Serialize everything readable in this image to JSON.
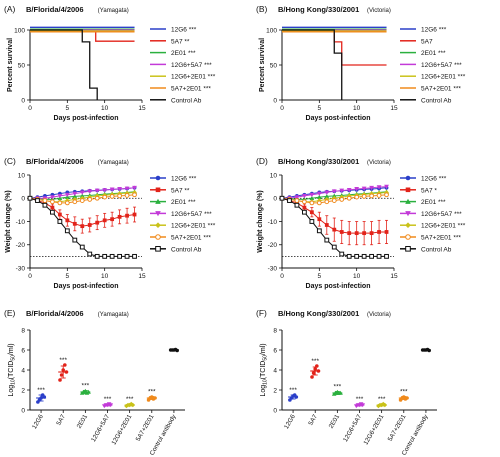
{
  "chart_data": [
    {
      "panel": "(A)",
      "title_main": "B/Florida/4/2006",
      "title_lineage": "(Yamagata)",
      "type": "line",
      "xlabel": "Days post-infection",
      "ylabel": "Percent survival",
      "xlim": [
        0,
        15
      ],
      "ylim": [
        0,
        100
      ],
      "xticks": [
        "0",
        "5",
        "10",
        "15"
      ],
      "yticks": [
        "0",
        "50",
        "100"
      ],
      "legend": "right",
      "series": [
        {
          "name": "12G6",
          "sig": "***",
          "color": "#2b3fc9",
          "x": [
            0,
            14
          ],
          "y": [
            100,
            100
          ]
        },
        {
          "name": "5A7",
          "sig": "**",
          "color": "#e2231a",
          "x": [
            0,
            8.8,
            8.8,
            14
          ],
          "y": [
            100,
            100,
            84,
            84
          ]
        },
        {
          "name": "2E01",
          "sig": "***",
          "color": "#2bb03f",
          "x": [
            0,
            14
          ],
          "y": [
            100,
            100
          ]
        },
        {
          "name": "12G6+5A7",
          "sig": "***",
          "color": "#c33ad8",
          "x": [
            0,
            14
          ],
          "y": [
            100,
            100
          ]
        },
        {
          "name": "12G6+2E01",
          "sig": "***",
          "color": "#c9c21a",
          "x": [
            0,
            14
          ],
          "y": [
            100,
            100
          ]
        },
        {
          "name": "5A7+2E01",
          "sig": "***",
          "color": "#f08a1c",
          "x": [
            0,
            14
          ],
          "y": [
            100,
            100
          ]
        },
        {
          "name": "Control Ab",
          "sig": "",
          "color": "#111111",
          "x": [
            0,
            7,
            7,
            8,
            8,
            9,
            9
          ],
          "y": [
            100,
            100,
            83,
            83,
            17,
            17,
            0
          ]
        }
      ]
    },
    {
      "panel": "(B)",
      "title_main": "B/Hong Kong/330/2001",
      "title_lineage": "(Victoria)",
      "type": "line",
      "xlabel": "Days post-infection",
      "ylabel": "Percent survival",
      "xlim": [
        0,
        15
      ],
      "ylim": [
        0,
        100
      ],
      "xticks": [
        "0",
        "5",
        "10",
        "15"
      ],
      "yticks": [
        "0",
        "50",
        "100"
      ],
      "legend": "right",
      "series": [
        {
          "name": "12G6",
          "sig": "***",
          "color": "#2b3fc9",
          "x": [
            0,
            14
          ],
          "y": [
            100,
            100
          ]
        },
        {
          "name": "5A7",
          "sig": "",
          "color": "#e2231a",
          "x": [
            0,
            7,
            7,
            8,
            8,
            14
          ],
          "y": [
            100,
            100,
            83,
            83,
            50,
            50
          ]
        },
        {
          "name": "2E01",
          "sig": "***",
          "color": "#2bb03f",
          "x": [
            0,
            14
          ],
          "y": [
            100,
            100
          ]
        },
        {
          "name": "12G6+5A7",
          "sig": "***",
          "color": "#c33ad8",
          "x": [
            0,
            14
          ],
          "y": [
            100,
            100
          ]
        },
        {
          "name": "12G6+2E01",
          "sig": "***",
          "color": "#c9c21a",
          "x": [
            0,
            14
          ],
          "y": [
            100,
            100
          ]
        },
        {
          "name": "5A7+2E01",
          "sig": "***",
          "color": "#f08a1c",
          "x": [
            0,
            14
          ],
          "y": [
            100,
            100
          ]
        },
        {
          "name": "Control Ab",
          "sig": "",
          "color": "#111111",
          "x": [
            0,
            7,
            7,
            8,
            8
          ],
          "y": [
            100,
            100,
            67,
            67,
            0
          ]
        }
      ]
    },
    {
      "panel": "(C)",
      "title_main": "B/Florida/4/2006",
      "title_lineage": "(Yamagata)",
      "type": "line",
      "xlabel": "Days post-infection",
      "ylabel": "Weight change (%)",
      "xlim": [
        0,
        15
      ],
      "ylim": [
        -30,
        10
      ],
      "xticks": [
        "0",
        "5",
        "10",
        "15"
      ],
      "yticks": [
        "-30",
        "-20",
        "-10",
        "0",
        "10"
      ],
      "reference_lines": [
        0,
        -25
      ],
      "legend": "right",
      "x": [
        0,
        1,
        2,
        3,
        4,
        5,
        6,
        7,
        8,
        9,
        10,
        11,
        12,
        13,
        14
      ],
      "series": [
        {
          "name": "12G6",
          "sig": "***",
          "color": "#2b3fc9",
          "marker": "circle",
          "y": [
            0,
            0.5,
            1,
            1.5,
            2,
            2.5,
            2.8,
            3,
            3.2,
            3.4,
            3.6,
            3.8,
            4,
            4.2,
            4.5
          ]
        },
        {
          "name": "5A7",
          "sig": "**",
          "color": "#e2231a",
          "marker": "square",
          "y": [
            0,
            -1,
            -2,
            -4,
            -7,
            -9.5,
            -11,
            -12,
            -11.5,
            -10.5,
            -9.5,
            -9,
            -8,
            -7.5,
            -7
          ],
          "err": [
            0,
            0.5,
            1,
            1.5,
            2,
            2.5,
            3,
            3,
            3,
            3,
            3,
            3,
            3,
            3.2,
            3.2
          ]
        },
        {
          "name": "2E01",
          "sig": "***",
          "color": "#2bb03f",
          "marker": "triangle-up",
          "y": [
            0,
            0,
            -0.5,
            -0.5,
            0,
            0.5,
            0.8,
            1,
            1.2,
            1.5,
            1.8,
            2,
            2.2,
            2.5,
            2.8
          ]
        },
        {
          "name": "12G6+5A7",
          "sig": "***",
          "color": "#c33ad8",
          "marker": "triangle-down",
          "y": [
            0,
            0,
            0,
            0.5,
            1,
            1.5,
            2,
            2.5,
            3,
            3.3,
            3.5,
            3.8,
            4,
            4.2,
            4.5
          ]
        },
        {
          "name": "12G6+2E01",
          "sig": "***",
          "color": "#c9c21a",
          "marker": "diamond",
          "y": [
            0,
            -0.5,
            -1,
            -1.5,
            -1.5,
            -1,
            -0.5,
            0,
            0.5,
            1,
            1.3,
            1.6,
            2,
            2.2,
            2.5
          ]
        },
        {
          "name": "5A7+2E01",
          "sig": "***",
          "color": "#f08a1c",
          "marker": "circle-open",
          "y": [
            0,
            -0.5,
            -1,
            -1.5,
            -2,
            -2,
            -1.5,
            -1,
            -0.5,
            0,
            0.5,
            0.8,
            1,
            1.2,
            1.5
          ]
        },
        {
          "name": "Control Ab",
          "sig": "",
          "color": "#111111",
          "marker": "square-open",
          "y": [
            0,
            -1,
            -3,
            -6,
            -10,
            -14,
            -18,
            -21,
            -24,
            -25,
            -25,
            -25,
            -25,
            -25,
            -25
          ]
        }
      ]
    },
    {
      "panel": "(D)",
      "title_main": "B/Hong Kong/330/2001",
      "title_lineage": "(Victoria)",
      "type": "line",
      "xlabel": "Days post-infection",
      "ylabel": "Weight change (%)",
      "xlim": [
        0,
        15
      ],
      "ylim": [
        -30,
        10
      ],
      "xticks": [
        "0",
        "5",
        "10",
        "15"
      ],
      "yticks": [
        "-30",
        "-20",
        "-10",
        "0",
        "10"
      ],
      "reference_lines": [
        0,
        -25
      ],
      "legend": "right",
      "x": [
        0,
        1,
        2,
        3,
        4,
        5,
        6,
        7,
        8,
        9,
        10,
        11,
        12,
        13,
        14
      ],
      "series": [
        {
          "name": "12G6",
          "sig": "***",
          "color": "#2b3fc9",
          "marker": "circle",
          "y": [
            0,
            0.5,
            1,
            1.5,
            2,
            2.5,
            2.8,
            3,
            3.2,
            3.4,
            3.6,
            3.8,
            4,
            4.2,
            4.5
          ]
        },
        {
          "name": "5A7",
          "sig": "*",
          "color": "#e2231a",
          "marker": "square",
          "y": [
            0,
            -1,
            -2,
            -4,
            -6,
            -9,
            -11.5,
            -13.5,
            -14.5,
            -15,
            -15,
            -15,
            -15,
            -14.5,
            -14.5
          ],
          "err": [
            0,
            0.5,
            1,
            1.5,
            2,
            3,
            4,
            5,
            5,
            5,
            5,
            5,
            5,
            5,
            5
          ]
        },
        {
          "name": "2E01",
          "sig": "***",
          "color": "#2bb03f",
          "marker": "triangle-up",
          "y": [
            0,
            0,
            -0.5,
            -0.5,
            0,
            0.5,
            0.8,
            1,
            1.2,
            1.5,
            1.8,
            2,
            2.2,
            2.5,
            2.8
          ]
        },
        {
          "name": "12G6+5A7",
          "sig": "***",
          "color": "#c33ad8",
          "marker": "triangle-down",
          "y": [
            0,
            0,
            0.5,
            1,
            1.5,
            2,
            2.5,
            3,
            3.3,
            3.6,
            4,
            4.2,
            4.5,
            4.8,
            5
          ]
        },
        {
          "name": "12G6+2E01",
          "sig": "***",
          "color": "#c9c21a",
          "marker": "diamond",
          "y": [
            0,
            -0.5,
            -1,
            -1.5,
            -1.5,
            -1,
            -0.5,
            0,
            0.5,
            1,
            1.3,
            1.6,
            2,
            2.2,
            2.5
          ]
        },
        {
          "name": "5A7+2E01",
          "sig": "***",
          "color": "#f08a1c",
          "marker": "circle-open",
          "y": [
            0,
            -0.5,
            -1,
            -1.5,
            -2,
            -2,
            -1.5,
            -1,
            -0.5,
            0,
            0.5,
            0.8,
            1,
            1.2,
            1.5
          ]
        },
        {
          "name": "Control Ab",
          "sig": "",
          "color": "#111111",
          "marker": "square-open",
          "y": [
            0,
            -1,
            -3,
            -6,
            -10,
            -14,
            -18,
            -21,
            -24,
            -25,
            -25,
            -25,
            -25,
            -25,
            -25
          ]
        }
      ]
    },
    {
      "panel": "(E)",
      "title_main": "B/Florida/4/2006",
      "title_lineage": "(Yamagata)",
      "type": "scatter",
      "ylabel_prefix": "Log",
      "ylabel_sub": "10",
      "ylabel_mid": "(TCID",
      "ylabel_sub2": "50",
      "ylabel_suffix": "/ml)",
      "ylim": [
        0,
        8
      ],
      "yticks": [
        "0",
        "2",
        "4",
        "6",
        "8"
      ],
      "categories": [
        "12G6",
        "5A7",
        "2E01",
        "12G6+5A7",
        "12G6+2E01",
        "5A7+2E01",
        "Control antibody"
      ],
      "colors": [
        "#2b3fc9",
        "#e2231a",
        "#2bb03f",
        "#c33ad8",
        "#c9c21a",
        "#f08a1c",
        "#111111"
      ],
      "markers": [
        "circle",
        "circle",
        "triangle-up",
        "triangle-down",
        "diamond",
        "circle",
        "circle"
      ],
      "sig": [
        "***",
        "***",
        "***",
        "***",
        "***",
        "***",
        ""
      ],
      "means": [
        1.2,
        3.8,
        1.8,
        0.5,
        0.5,
        1.2,
        6.0
      ],
      "sem": [
        0.3,
        0.6,
        0.15,
        0.1,
        0.1,
        0.15,
        0.05
      ],
      "points": [
        [
          0.8,
          1.0,
          1.2,
          1.5,
          1.3
        ],
        [
          3.0,
          3.5,
          4.0,
          4.5,
          3.8
        ],
        [
          1.7,
          1.8,
          1.9,
          1.7,
          1.8
        ],
        [
          0.4,
          0.5,
          0.5,
          0.6,
          0.5
        ],
        [
          0.4,
          0.5,
          0.5,
          0.6,
          0.5
        ],
        [
          1.0,
          1.2,
          1.3,
          1.1,
          1.2
        ],
        [
          6.0,
          6.0,
          6.0,
          6.05,
          5.95
        ]
      ]
    },
    {
      "panel": "(F)",
      "title_main": "B/Hong Kong/330/2001",
      "title_lineage": "(Victoria)",
      "type": "scatter",
      "ylabel_prefix": "Log",
      "ylabel_sub": "10",
      "ylabel_mid": "(TCID",
      "ylabel_sub2": "50",
      "ylabel_suffix": "/ml)",
      "ylim": [
        0,
        8
      ],
      "yticks": [
        "0",
        "2",
        "4",
        "6",
        "8"
      ],
      "categories": [
        "12G6",
        "5A7",
        "2E01",
        "12G6+5A7",
        "12G6+2E01",
        "5A7+2E01",
        "Control antibody"
      ],
      "colors": [
        "#2b3fc9",
        "#e2231a",
        "#2bb03f",
        "#c33ad8",
        "#c9c21a",
        "#f08a1c",
        "#111111"
      ],
      "markers": [
        "circle",
        "circle",
        "triangle-up",
        "triangle-down",
        "diamond",
        "circle",
        "circle"
      ],
      "sig": [
        "***",
        "***",
        "***",
        "***",
        "***",
        "***",
        ""
      ],
      "means": [
        1.3,
        3.9,
        1.7,
        0.5,
        0.5,
        1.2,
        6.0
      ],
      "sem": [
        0.2,
        0.4,
        0.15,
        0.1,
        0.1,
        0.15,
        0.05
      ],
      "points": [
        [
          1.0,
          1.2,
          1.4,
          1.5,
          1.3
        ],
        [
          3.3,
          3.7,
          4.1,
          4.4,
          3.9
        ],
        [
          1.6,
          1.7,
          1.8,
          1.7,
          1.7
        ],
        [
          0.4,
          0.5,
          0.5,
          0.6,
          0.5
        ],
        [
          0.4,
          0.5,
          0.5,
          0.6,
          0.5
        ],
        [
          1.0,
          1.2,
          1.3,
          1.1,
          1.2
        ],
        [
          6.0,
          6.0,
          6.0,
          6.05,
          5.95
        ]
      ]
    }
  ]
}
